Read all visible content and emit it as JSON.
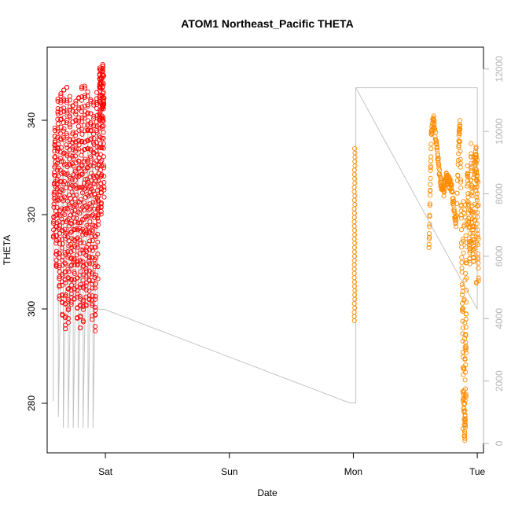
{
  "chart_data": {
    "type": "scatter",
    "title": "ATOM1 Northeast_Pacific THETA",
    "xlabel": "Date",
    "ylabel": "THETA",
    "x_tick_labels": [
      "Sat",
      "Sun",
      "Mon",
      "Tue"
    ],
    "x_tick_days": [
      1,
      2,
      3,
      4
    ],
    "xlim_days": [
      0.53,
      4.05
    ],
    "ylim": [
      269.5,
      355.5
    ],
    "y_ticks": [
      280,
      300,
      320,
      340
    ],
    "right_axis": {
      "ticks": [
        0,
        2000,
        4000,
        6000,
        8000,
        10000,
        12000
      ],
      "ylim": [
        -300,
        12700
      ],
      "color": "#b5b5b5"
    },
    "grid": false,
    "series": [
      {
        "color": "#ff0000",
        "marker": "open-circle",
        "x_day_range": [
          0.58,
          0.99
        ],
        "y_range": [
          297,
          352
        ],
        "note": "dense profile casts"
      },
      {
        "color": "#ff8c00",
        "marker": "open-circle",
        "x_day_range": [
          3.0,
          4.01
        ],
        "y_range": [
          272,
          340
        ]
      }
    ],
    "depth_trace": {
      "color": "#c4c4c4",
      "points": [
        [
          0.58,
          1350
        ],
        [
          0.58,
          9700
        ],
        [
          0.62,
          9800
        ],
        [
          0.62,
          850
        ],
        [
          0.66,
          9700
        ],
        [
          0.66,
          500
        ],
        [
          0.7,
          9800
        ],
        [
          0.7,
          500
        ],
        [
          0.74,
          9700
        ],
        [
          0.74,
          500
        ],
        [
          0.78,
          9800
        ],
        [
          0.78,
          500
        ],
        [
          0.82,
          9900
        ],
        [
          0.82,
          500
        ],
        [
          0.86,
          10300
        ],
        [
          0.86,
          500
        ],
        [
          0.9,
          10300
        ],
        [
          0.9,
          500
        ],
        [
          0.94,
          10400
        ],
        [
          0.94,
          4300
        ],
        [
          0.99,
          4300
        ],
        [
          2.97,
          1300
        ],
        [
          3.02,
          1300
        ],
        [
          3.02,
          11400
        ],
        [
          4.0,
          11400
        ],
        [
          4.0,
          4300
        ],
        [
          3.02,
          11400
        ],
        [
          3.02,
          3300
        ]
      ]
    }
  }
}
